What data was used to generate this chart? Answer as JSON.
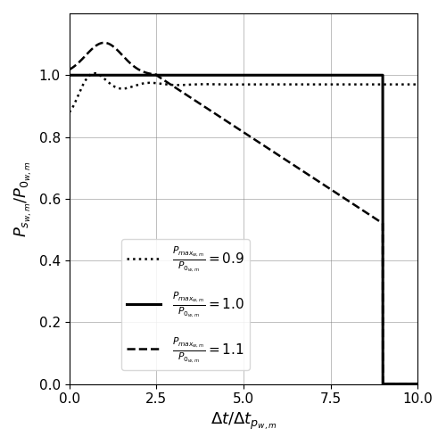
{
  "xlim": [
    0,
    10
  ],
  "ylim": [
    0.0,
    1.2
  ],
  "xticks": [
    0.0,
    2.5,
    5.0,
    7.5,
    10.0
  ],
  "yticks": [
    0.0,
    0.2,
    0.4,
    0.6,
    0.8,
    1.0
  ],
  "xlabel": "$\\Delta t/\\Delta t_{p_{w,m}}$",
  "ylabel": "$P_{s_{w,m}}/P_{0_{w,m}}$",
  "grid": true,
  "background_color": "#ffffff",
  "line_color": "black",
  "legend_labels": [
    "$\\frac{P_{max_{w,m}}}{P_{0_{w,m}}}=0.9$",
    "$\\frac{P_{max_{w,m}}}{P_{0_{w,m}}}=1.0$",
    "$\\frac{P_{max_{w,m}}}{P_{0_{w,m}}}=1.1$"
  ]
}
